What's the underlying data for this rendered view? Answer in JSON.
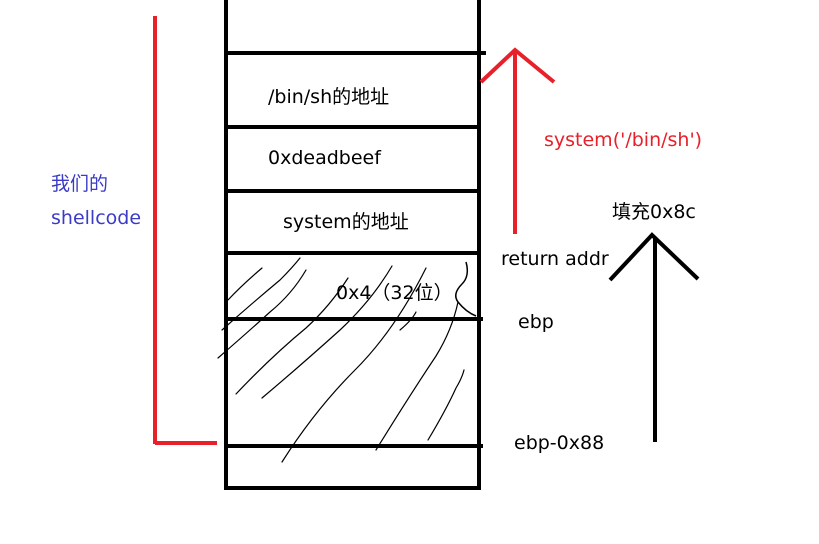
{
  "stack": {
    "cells": {
      "binsh_addr": "/bin/sh的地址",
      "deadbeef": "0xdeadbeef",
      "system_addr": "system的地址",
      "padding_4": "0x4（32位）"
    }
  },
  "labels": {
    "system_call": "system('/bin/sh')",
    "fill": "填充0x8c",
    "return_addr": "return addr",
    "ebp": "ebp",
    "ebp_offset": "ebp-0x88",
    "shellcode_line1": "我们的",
    "shellcode_line2": "shellcode"
  },
  "colors": {
    "stroke": "#000000",
    "red": "#e8202a",
    "blue": "#3b3bc8"
  }
}
